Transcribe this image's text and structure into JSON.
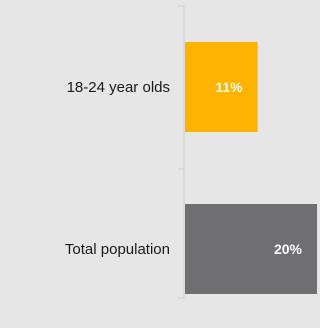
{
  "chart_data": {
    "type": "bar",
    "orientation": "horizontal",
    "categories": [
      "18-24 year olds",
      "Total population"
    ],
    "values": [
      11,
      20
    ],
    "value_labels": [
      "11%",
      "20%"
    ],
    "colors": [
      "#fdb300",
      "#6f6f72"
    ],
    "xlim": [
      0,
      20
    ],
    "grid": false,
    "legend": "none"
  }
}
